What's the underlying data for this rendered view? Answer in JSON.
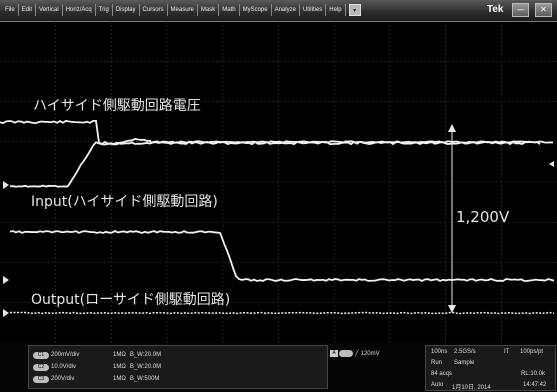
{
  "menubar": {
    "items": [
      "File",
      "Edit",
      "Vertical",
      "Horiz/Acq",
      "Trig",
      "Display",
      "Cursors",
      "Measure",
      "Mask",
      "Math",
      "MyScope",
      "Analyze",
      "Utilities",
      "Help"
    ],
    "dropdown_glyph": "▾",
    "brand": "Tek",
    "minimize_glyph": "—",
    "close_glyph": "✕"
  },
  "waveform_labels": {
    "top": "ハイサイド側駆動回路電圧",
    "middle": "Input(ハイサイド側駆動回路)",
    "bottom": "Output(ローサイド側駆動回路)",
    "measurement": "1,200V"
  },
  "channels": [
    {
      "id": "C1",
      "scale": "200mV/div",
      "impedance": "1MΩ",
      "bandwidth": "B_W:20.0M"
    },
    {
      "id": "C2",
      "scale": "10.0V/div",
      "impedance": "1MΩ",
      "bandwidth": "B_W:20.0M"
    },
    {
      "id": "C3",
      "scale": "200V/div",
      "impedance": "1MΩ",
      "bandwidth": "B_W:500M"
    }
  ],
  "trigger": {
    "source": "A",
    "level": "120mV"
  },
  "acquisition": {
    "timebase": "100ns",
    "sample_rate": "2.5GS/s",
    "it": "IT",
    "resolution": "100ps/pt",
    "run_mode": "Run",
    "acq_mode": "Sample",
    "acqs": "84 acqs",
    "record_length": "RL:10.0k",
    "trigger_mode": "Auto",
    "date": "1月10日, 2014",
    "time": "14:47:42"
  },
  "colors": {
    "trace": "#f2f2f2",
    "grid": "#4a4a4a",
    "background": "#000000"
  }
}
